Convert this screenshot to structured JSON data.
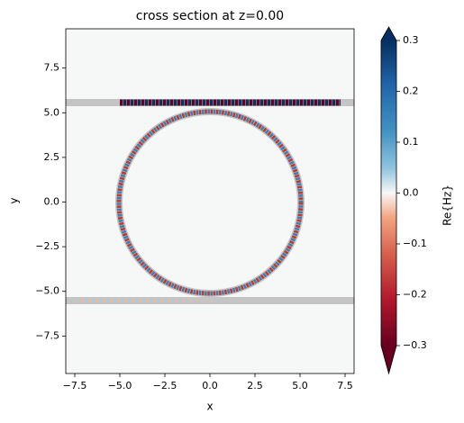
{
  "chart_data": {
    "type": "field",
    "title": "cross section at z=0.00",
    "xlabel": "x",
    "ylabel": "y",
    "xlim": [
      -8,
      8
    ],
    "ylim": [
      -9.6,
      9.7
    ],
    "xticks": [
      {
        "value": -7.5,
        "label": "−7.5"
      },
      {
        "value": -5,
        "label": "−5.0"
      },
      {
        "value": -2.5,
        "label": "−2.5"
      },
      {
        "value": 0,
        "label": "0.0"
      },
      2.5,
      {
        "value": 5,
        "label": "5.0"
      },
      7.5
    ],
    "yticks": [
      {
        "value": -7.5,
        "label": "−7.5"
      },
      {
        "value": -5,
        "label": "−5.0"
      },
      {
        "value": -2.5,
        "label": "−2.5"
      },
      {
        "value": 0,
        "label": "0.0"
      },
      2.5,
      {
        "value": 5,
        "label": "5.0"
      },
      7.5
    ],
    "colorbar": {
      "label": "Re{Hz}",
      "lim": [
        -0.3,
        0.3
      ],
      "ticks": [
        {
          "value": -0.3,
          "label": "−0.3"
        },
        {
          "value": -0.2,
          "label": "−0.2"
        },
        {
          "value": -0.1,
          "label": "−0.1"
        },
        {
          "value": 0,
          "label": "0.0"
        },
        0.1,
        0.2,
        0.3
      ]
    }
  }
}
